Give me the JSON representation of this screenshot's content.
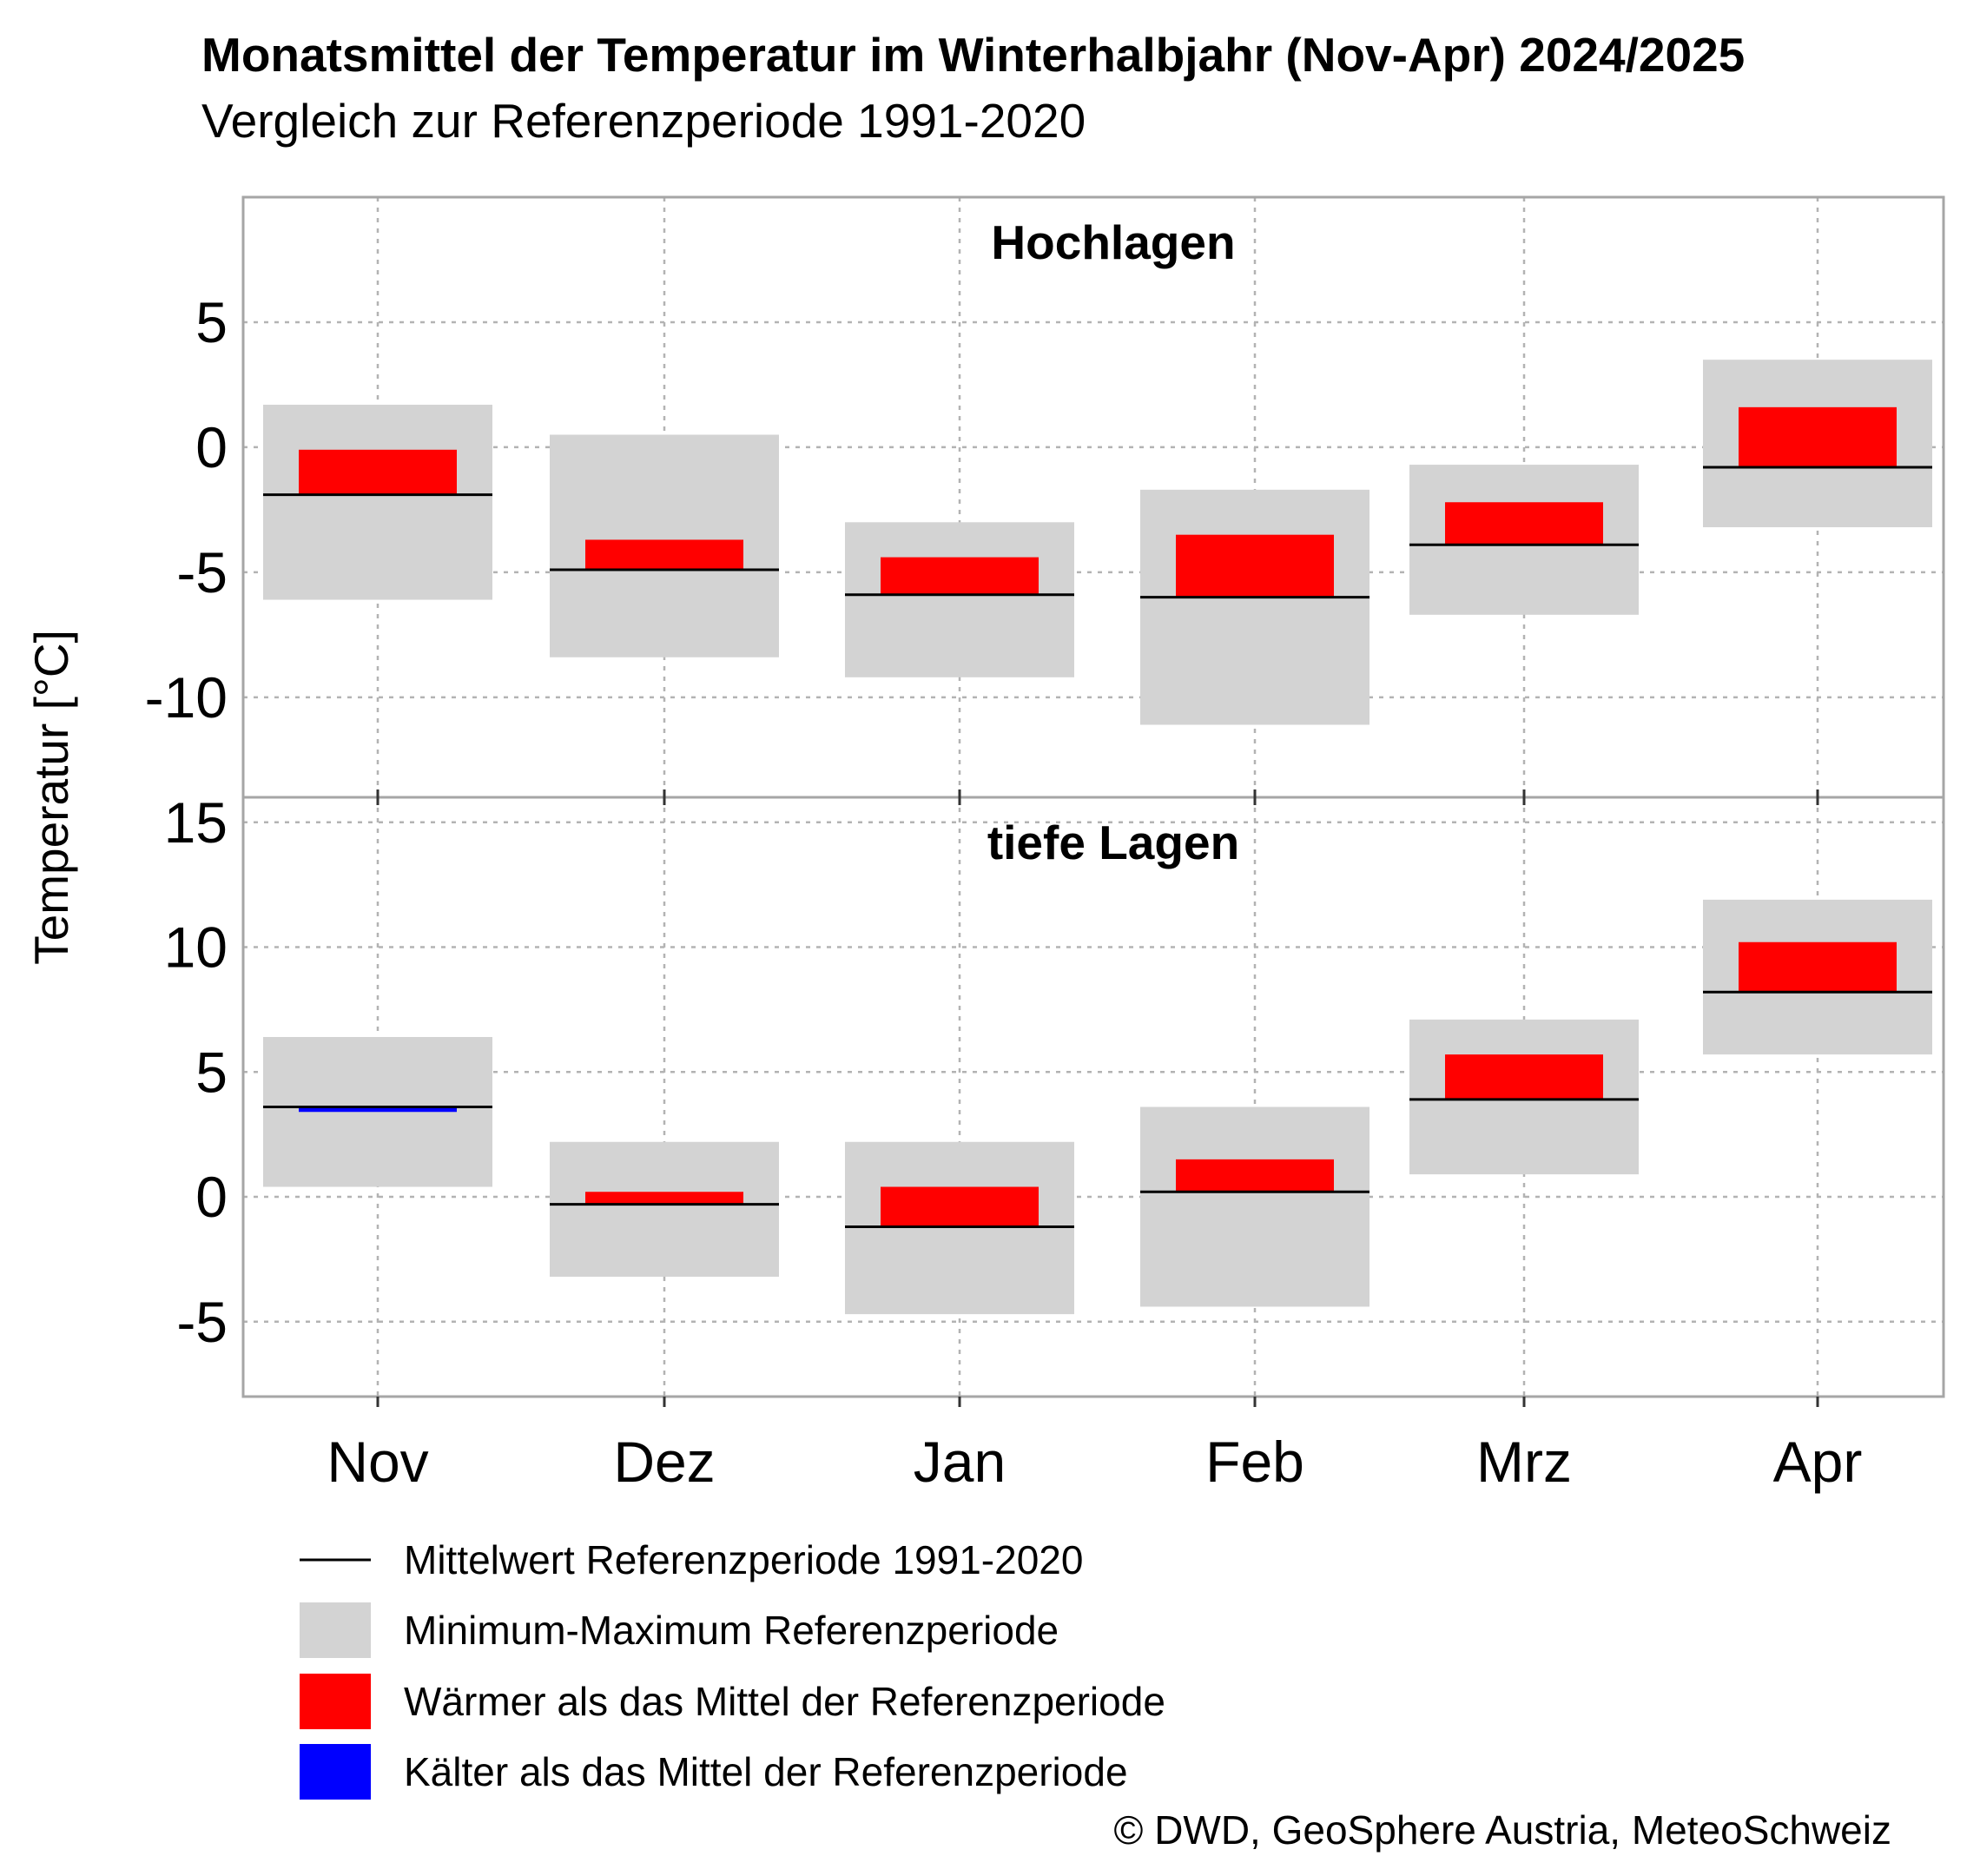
{
  "title": "Monatsmittel der Temperatur im Winterhalbjahr (Nov-Apr) 2024/2025",
  "subtitle": "Vergleich zur Referenzperiode 1991-2020",
  "copyright": "© DWD, GeoSphere Austria, MeteoSchweiz",
  "colors": {
    "range": "#d3d3d3",
    "warmer": "#ff0000",
    "colder": "#0000ff",
    "mean_line": "#000000",
    "grid": "#b3b3b3",
    "frame": "#a6a6a6"
  },
  "chart_data": {
    "type": "bar",
    "ylabel": "Temperatur [°C]",
    "categories": [
      "Nov",
      "Dez",
      "Jan",
      "Feb",
      "Mrz",
      "Apr"
    ],
    "grid": true,
    "legend_position": "bottom",
    "panels": [
      {
        "name": "Hochlagen",
        "ylim": [
          -14,
          10
        ],
        "yticks": [
          -10,
          -5,
          0,
          5
        ],
        "ytick_labels": [
          "-10",
          "-5",
          "0",
          "5"
        ],
        "series": [
          {
            "name": "Mittelwert Referenzperiode 1991-2020",
            "values": [
              -1.9,
              -4.9,
              -5.9,
              -6.0,
              -3.9,
              -0.8
            ]
          },
          {
            "name": "Minimum-Maximum Referenzperiode",
            "min": [
              -6.1,
              -8.4,
              -9.2,
              -11.1,
              -6.7,
              -3.2
            ],
            "max": [
              1.7,
              0.5,
              -3.0,
              -1.7,
              -0.7,
              3.5
            ]
          },
          {
            "name": "Monatsmittel 2024/2025",
            "values": [
              -0.1,
              -3.7,
              -4.4,
              -3.5,
              -2.2,
              1.6
            ]
          }
        ]
      },
      {
        "name": "tiefe Lagen",
        "ylim": [
          -8,
          16
        ],
        "yticks": [
          -5,
          0,
          5,
          10,
          15
        ],
        "ytick_labels": [
          "-5",
          "0",
          "5",
          "10",
          "15"
        ],
        "series": [
          {
            "name": "Mittelwert Referenzperiode 1991-2020",
            "values": [
              3.6,
              -0.3,
              -1.2,
              0.2,
              3.9,
              8.2
            ]
          },
          {
            "name": "Minimum-Maximum Referenzperiode",
            "min": [
              0.4,
              -3.2,
              -4.7,
              -4.4,
              0.9,
              5.7
            ],
            "max": [
              6.4,
              2.2,
              2.2,
              3.6,
              7.1,
              11.9
            ]
          },
          {
            "name": "Monatsmittel 2024/2025",
            "values": [
              3.4,
              0.2,
              0.4,
              1.5,
              5.7,
              10.2
            ]
          }
        ]
      }
    ]
  },
  "legend": [
    {
      "label": "Mittelwert Referenzperiode 1991-2020",
      "kind": "line",
      "color": "#000000"
    },
    {
      "label": "Minimum-Maximum Referenzperiode",
      "kind": "box",
      "color": "#d3d3d3"
    },
    {
      "label": "Wärmer als das Mittel der Referenzperiode",
      "kind": "box",
      "color": "#ff0000"
    },
    {
      "label": "Kälter als das Mittel der Referenzperiode",
      "kind": "box",
      "color": "#0000ff"
    }
  ]
}
